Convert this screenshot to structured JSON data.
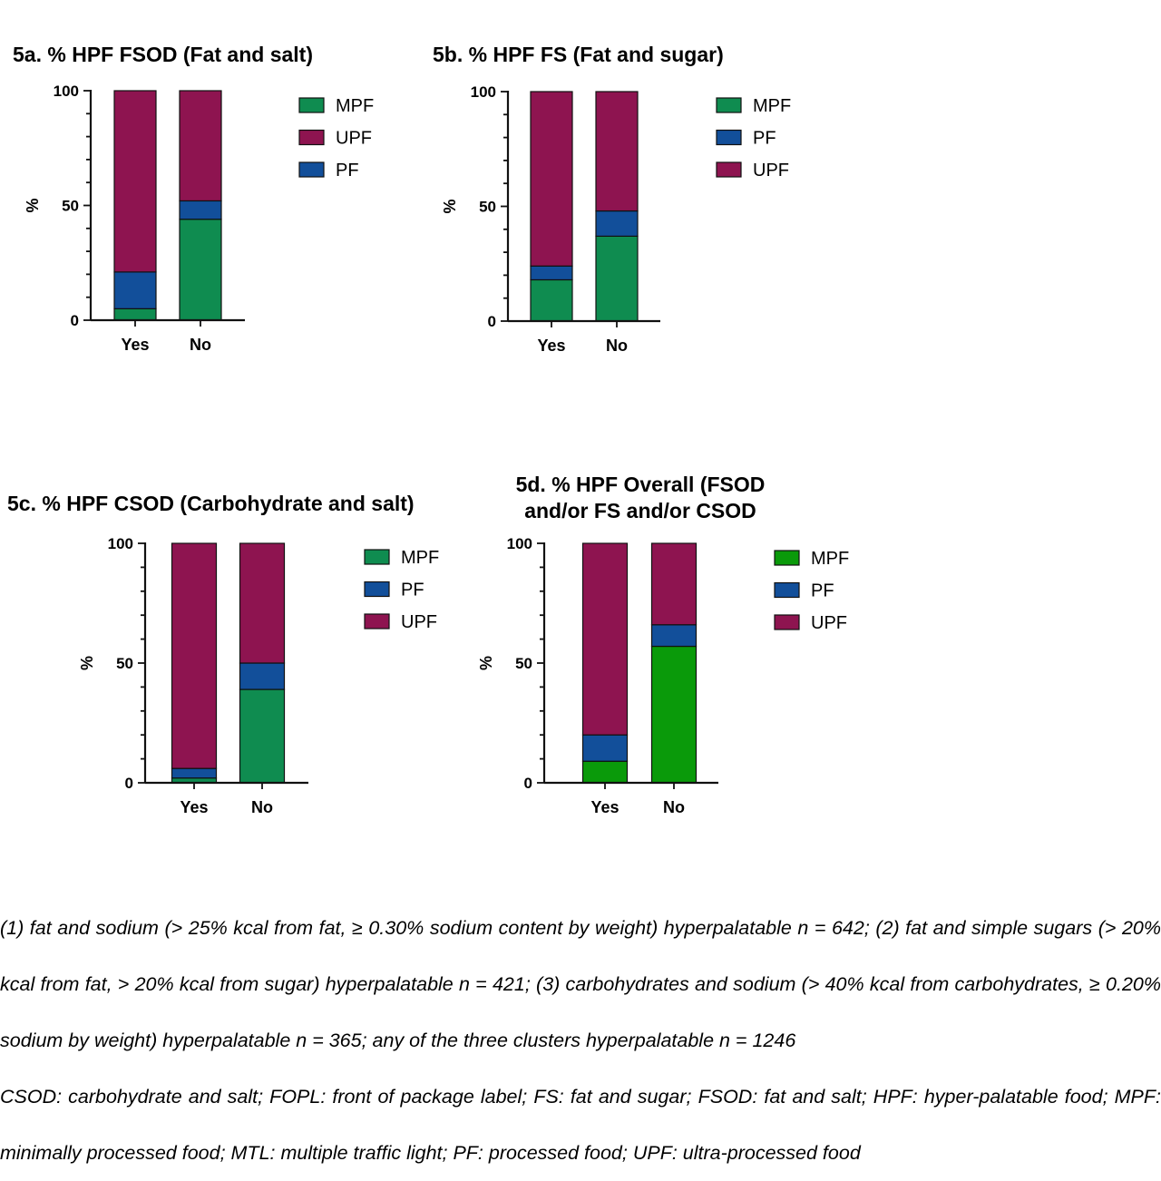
{
  "chart_data": [
    {
      "type": "bar",
      "stacked": true,
      "title": "5a. % HPF FSOD (Fat and salt)",
      "xlabel": "",
      "ylabel": "%",
      "ylim": [
        0,
        100
      ],
      "yticks": [
        "0",
        "50",
        "100"
      ],
      "categories": [
        "Yes",
        "No"
      ],
      "series": [
        {
          "name": "MPF",
          "values": [
            5,
            44
          ],
          "color": "#0f8c50"
        },
        {
          "name": "PF",
          "values": [
            16,
            8
          ],
          "color": "#124f9a"
        },
        {
          "name": "UPF",
          "values": [
            79,
            48
          ],
          "color": "#8e1450"
        }
      ],
      "legend": [
        "MPF",
        "UPF",
        "PF"
      ],
      "legend_position": "right"
    },
    {
      "type": "bar",
      "stacked": true,
      "title": "5b. % HPF FS (Fat and sugar)",
      "xlabel": "",
      "ylabel": "%",
      "ylim": [
        0,
        100
      ],
      "yticks": [
        "0",
        "50",
        "100"
      ],
      "categories": [
        "Yes",
        "No"
      ],
      "series": [
        {
          "name": "MPF",
          "values": [
            18,
            37
          ],
          "color": "#0f8c50"
        },
        {
          "name": "PF",
          "values": [
            6,
            11
          ],
          "color": "#124f9a"
        },
        {
          "name": "UPF",
          "values": [
            76,
            52
          ],
          "color": "#8e1450"
        }
      ],
      "legend": [
        "MPF",
        "PF",
        "UPF"
      ],
      "legend_position": "right"
    },
    {
      "type": "bar",
      "stacked": true,
      "title": "5c. % HPF CSOD (Carbohydrate and salt)",
      "xlabel": "",
      "ylabel": "%",
      "ylim": [
        0,
        100
      ],
      "yticks": [
        "0",
        "50",
        "100"
      ],
      "categories": [
        "Yes",
        "No"
      ],
      "series": [
        {
          "name": "MPF",
          "values": [
            2,
            39
          ],
          "color": "#0f8c50"
        },
        {
          "name": "PF",
          "values": [
            4,
            11
          ],
          "color": "#124f9a"
        },
        {
          "name": "UPF",
          "values": [
            94,
            50
          ],
          "color": "#8e1450"
        }
      ],
      "legend": [
        "MPF",
        "PF",
        "UPF"
      ],
      "legend_position": "right"
    },
    {
      "type": "bar",
      "stacked": true,
      "title": "5d. % HPF Overall (FSOD and/or FS and/or CSOD",
      "xlabel": "",
      "ylabel": "%",
      "ylim": [
        0,
        100
      ],
      "yticks": [
        "0",
        "50",
        "100"
      ],
      "categories": [
        "Yes",
        "No"
      ],
      "series": [
        {
          "name": "MPF",
          "values": [
            9,
            57
          ],
          "color": "#0a9a0a"
        },
        {
          "name": "PF",
          "values": [
            11,
            9
          ],
          "color": "#124f9a"
        },
        {
          "name": "UPF",
          "values": [
            80,
            34
          ],
          "color": "#8e1450"
        }
      ],
      "legend": [
        "MPF",
        "PF",
        "UPF"
      ],
      "legend_position": "right"
    }
  ],
  "titles": {
    "a": "5a. % HPF FSOD (Fat and salt)",
    "b": "5b. % HPF FS (Fat and sugar)",
    "c": "5c. % HPF CSOD (Carbohydrate and salt)",
    "d_line1": "5d. % HPF Overall (FSOD",
    "d_line2": "and/or FS and/or CSOD"
  },
  "caption": {
    "paragraph1": "(1) fat and sodium (> 25% kcal from fat, ≥ 0.30% sodium content by weight) hyperpalatable n = 642; (2) fat and simple sugars (> 20% kcal from fat, > 20% kcal from sugar) hyperpalatable n = 421; (3) carbohydrates and sodium (> 40% kcal from carbohydrates, ≥ 0.20% sodium by weight) hyperpalatable n = 365; any of the three clusters hyperpalatable n = 1246",
    "paragraph2": "CSOD: carbohydrate and salt; FOPL: front of package label; FS: fat and sugar; FSOD: fat and salt; HPF: hyper-palatable food; MPF: minimally processed food; MTL: multiple traffic light; PF: processed food; UPF: ultra-processed food"
  }
}
